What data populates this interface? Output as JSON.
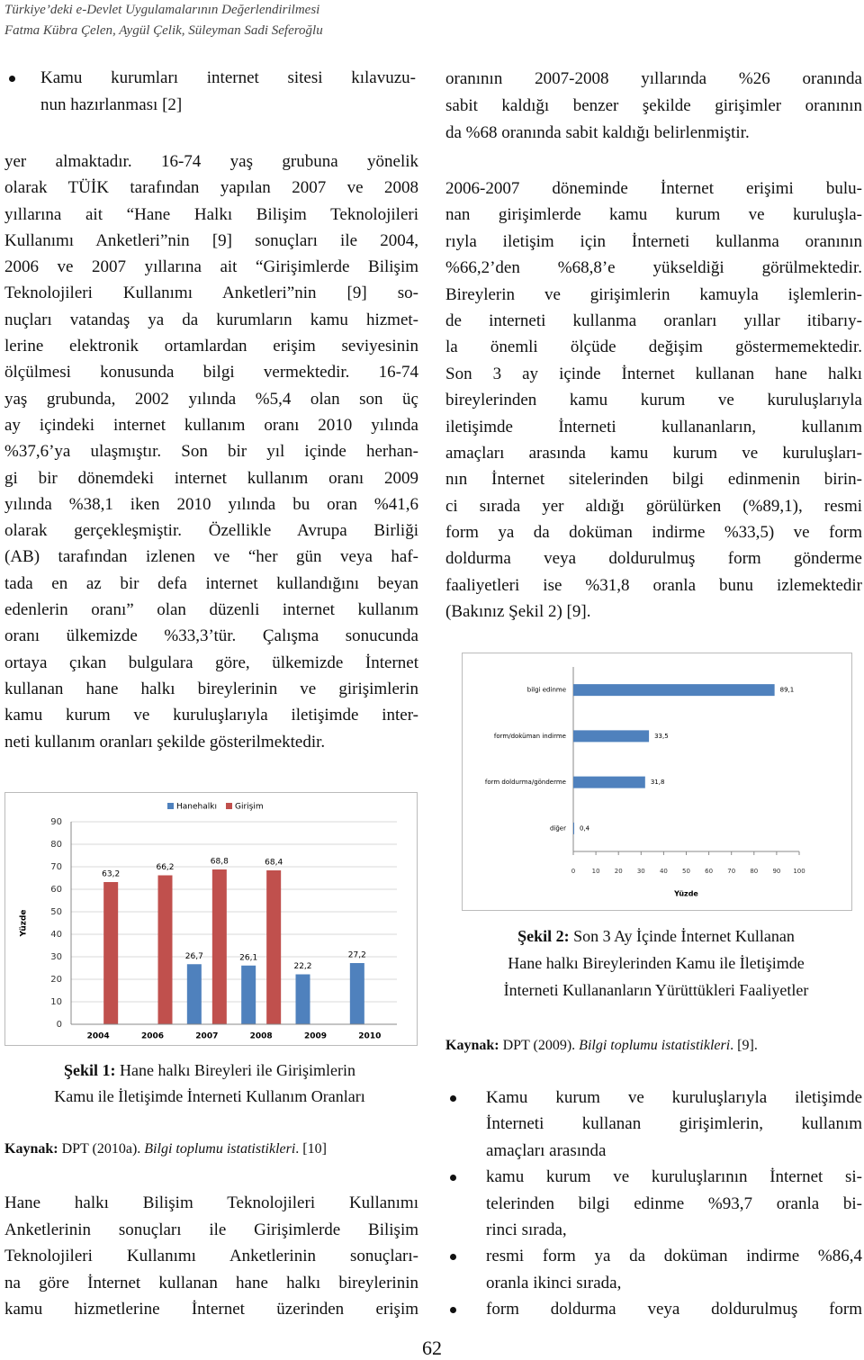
{
  "header": {
    "title": "Türkiye’deki e-Devlet Uygulamalarının Değerlendirilmesi",
    "authors": "Fatma Kübra Çelen, Aygül Çelik, Süleyman Sadi Seferoğlu"
  },
  "left_column": {
    "bullet": [
      "Kamu kurumları internet sitesi kılavuzu-",
      "nun hazırlanması [2]"
    ],
    "paragraph": [
      "yer almaktadır. 16-74 yaş grubuna yönelik",
      "olarak TÜİK tarafından yapılan 2007 ve 2008",
      "yıllarına ait “Hane Halkı Bilişim Teknolojileri",
      "Kullanımı Anketleri”nin [9] sonuçları ile 2004,",
      "2006 ve 2007 yıllarına ait “Girişimlerde Bilişim",
      "Teknolojileri Kullanımı Anketleri”nin [9] so-",
      "nuçları vatandaş ya da kurumların kamu hizmet-",
      "lerine elektronik ortamlardan erişim seviyesinin",
      "ölçülmesi konusunda bilgi vermektedir. 16-74",
      "yaş grubunda, 2002 yılında %5,4 olan son üç",
      "ay içindeki internet kullanım oranı 2010 yılında",
      "%37,6’ya ulaşmıştır. Son bir yıl içinde herhan-",
      "gi bir dönemdeki internet kullanım oranı 2009",
      "yılında %38,1 iken 2010 yılında bu oran %41,6",
      "olarak gerçekleşmiştir. Özellikle Avrupa Birliği",
      "(AB) tarafından izlenen ve “her gün veya haf-",
      "tada en az bir defa internet kullandığını beyan",
      "edenlerin oranı” olan düzenli internet kullanım",
      "oranı ülkemizde %33,3’tür. Çalışma sonucunda",
      "ortaya çıkan bulgulara göre, ülkemizde İnternet",
      "kullanan hane halkı bireylerinin ve girişimlerin",
      "kamu kurum ve kuruluşlarıyla iletişimde inter-",
      "neti kullanım oranları şekilde gösterilmektedir."
    ],
    "caption": {
      "label": "Şekil 1:",
      "lines": [
        "Hane halkı Bireyleri ile Girişimlerin",
        "Kamu ile İletişimde İnterneti Kullanım Oranları"
      ]
    },
    "source": {
      "label": "Kaynak:",
      "text": "DPT (2010a).",
      "title": "Bilgi toplumu istatistikleri",
      "ref": ". [10]"
    },
    "paragraph_2": [
      "Hane halkı Bilişim Teknolojileri Kullanımı",
      "Anketlerinin sonuçları ile Girişimlerde Bilişim",
      "Teknolojileri Kullanımı Anketlerinin sonuçları-",
      "na göre İnternet kullanan hane halkı bireylerinin",
      "kamu hizmetlerine İnternet üzerinden erişim"
    ]
  },
  "right_column": {
    "paragraph_1": [
      "oranının 2007-2008 yıllarında %26 oranında",
      "sabit kaldığı benzer şekilde girişimler oranının",
      "da %68 oranında sabit kaldığı belirlenmiştir."
    ],
    "paragraph_2": [
      "2006-2007 döneminde İnternet erişimi bulu-",
      "nan girişimlerde kamu kurum ve kuruluşla-",
      "rıyla iletişim için İnterneti kullanma oranının",
      "%66,2’den %68,8’e yükseldiği görülmektedir.",
      "Bireylerin ve girişimlerin kamuyla işlemlerin-",
      "de interneti kullanma oranları yıllar itibarıy-",
      "la önemli ölçüde değişim göstermemektedir.",
      "Son 3 ay içinde İnternet kullanan hane halkı",
      "bireylerinden kamu kurum ve kuruluşlarıyla",
      "iletişimde İnterneti kullananların, kullanım",
      "amaçları arasında kamu kurum ve kuruluşları-",
      "nın İnternet sitelerinden bilgi edinmenin birin-",
      "ci sırada yer aldığı görülürken (%89,1), resmi",
      "form ya da doküman indirme %33,5) ve form",
      "doldurma veya doldurulmuş form gönderme",
      "faaliyetleri ise %31,8 oranla bunu izlemektedir",
      "(Bakınız Şekil 2) [9]."
    ],
    "caption": {
      "label": "Şekil 2:",
      "lines": [
        "Son 3 Ay İçinde İnternet Kullanan",
        "Hane halkı Bireylerinden Kamu ile İletişimde",
        "İnterneti Kullananların Yürüttükleri Faaliyetler"
      ]
    },
    "source": {
      "label": "Kaynak:",
      "text": "DPT (2009).",
      "title": "Bilgi toplumu istatistikleri",
      "ref": ". [9]."
    },
    "bullets": [
      [
        "Kamu kurum ve kuruluşlarıyla iletişimde",
        "İnterneti kullanan girişimlerin, kullanım",
        "amaçları arasında"
      ],
      [
        "kamu kurum ve kuruluşlarının İnternet si-",
        "telerinden bilgi edinme %93,7 oranla bi-",
        "rinci sırada,"
      ],
      [
        "resmi form ya da doküman indirme %86,4",
        "oranla ikinci sırada,"
      ],
      [
        "form doldurma veya doldurulmuş form"
      ]
    ]
  },
  "page_number": "62",
  "chart_data": [
    {
      "type": "bar",
      "categories": [
        "2004",
        "2006",
        "2007",
        "2008",
        "2009",
        "2010"
      ],
      "series": [
        {
          "name": "Hanehalkı",
          "color": "#4f81bd",
          "values": [
            null,
            null,
            26.7,
            26.1,
            22.2,
            27.2
          ],
          "value_labels": [
            null,
            null,
            "26,7",
            "26,1",
            "22,2",
            "27,2"
          ]
        },
        {
          "name": "Girişim",
          "color": "#c0504d",
          "values": [
            63.2,
            66.2,
            68.8,
            68.4,
            null,
            null
          ],
          "value_labels": [
            "63,2",
            "66,2",
            "68,8",
            "68,4",
            null,
            null
          ]
        }
      ],
      "y_label": "Yüzde",
      "ylim": [
        0,
        90
      ],
      "yticks": [
        0,
        10,
        20,
        30,
        40,
        50,
        60,
        70,
        80,
        90
      ],
      "grid": true
    },
    {
      "type": "barh",
      "categories": [
        "bilgi edinme",
        "form/doküman indirme",
        "form doldurma/gönderme",
        "diğer"
      ],
      "values": [
        89.1,
        33.5,
        31.8,
        0.4
      ],
      "value_labels": [
        "89,1",
        "33,5",
        "31,8",
        "0,4"
      ],
      "color": "#4f81bd",
      "x_label": "Yüzde",
      "xlim": [
        0,
        100
      ],
      "xticks": [
        0,
        10,
        20,
        30,
        40,
        50,
        60,
        70,
        80,
        90,
        100
      ],
      "grid": false
    }
  ]
}
